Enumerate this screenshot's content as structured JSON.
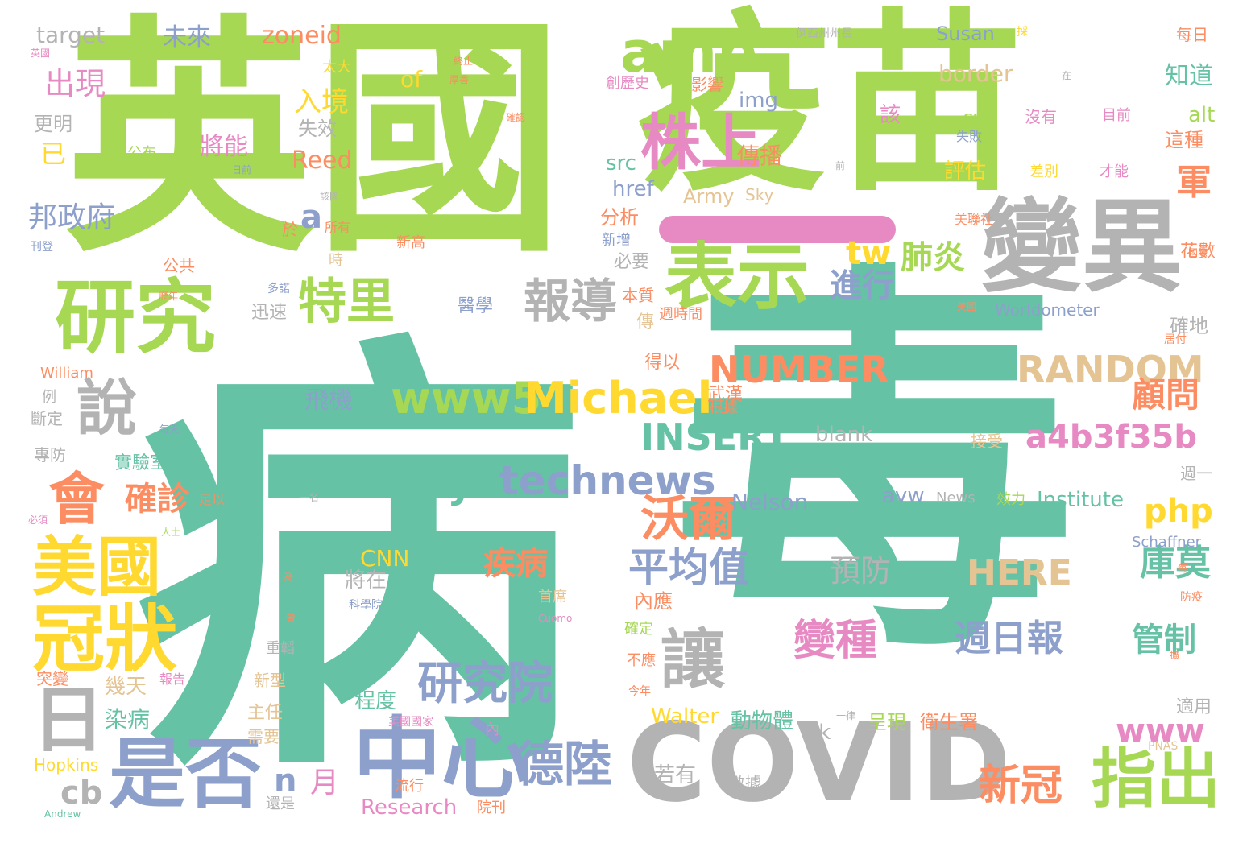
{
  "title": "",
  "palette": {
    "green": "#a6d854",
    "teal": "#66c2a5",
    "gray": "#b3b3b3",
    "blue": "#8da0cb",
    "yellow": "#ffd92f",
    "orange": "#fc8d62",
    "pink": "#e78ac3",
    "tan": "#e5c494"
  },
  "words": [
    {
      "text": "病",
      "color": "#66c2a5"
    },
    {
      "text": "毒",
      "color": "#66c2a5"
    },
    {
      "text": "英國",
      "color": "#a6d854"
    },
    {
      "text": "疫苗",
      "color": "#a6d854"
    },
    {
      "text": "COVID",
      "color": "#b3b3b3"
    },
    {
      "text": "變異",
      "color": "#b3b3b3"
    },
    {
      "text": "表示",
      "color": "#a6d854"
    },
    {
      "text": "研究",
      "color": "#a6d854"
    },
    {
      "text": "中心",
      "color": "#8da0cb"
    },
    {
      "text": "是否",
      "color": "#8da0cb"
    },
    {
      "text": "冠狀",
      "color": "#ffd92f"
    },
    {
      "text": "美國",
      "color": "#ffd92f"
    },
    {
      "text": "日",
      "color": "#b3b3b3"
    },
    {
      "text": "會",
      "color": "#fc8d62"
    },
    {
      "text": "說",
      "color": "#b3b3b3"
    },
    {
      "text": "amp",
      "color": "#a6d854"
    },
    {
      "text": "株上",
      "color": "#e78ac3"
    },
    {
      "text": "讓",
      "color": "#b3b3b3"
    },
    {
      "text": "指出",
      "color": "#a6d854"
    },
    {
      "text": "特里",
      "color": "#a6d854"
    },
    {
      "text": "報導",
      "color": "#b3b3b3"
    },
    {
      "text": "www5",
      "color": "#a6d854"
    },
    {
      "text": "Michael",
      "color": "#ffd92f"
    },
    {
      "text": "technews",
      "color": "#8da0cb"
    },
    {
      "text": "delivery",
      "color": "#66c2a5"
    },
    {
      "text": "沃爾",
      "color": "#fc8d62"
    },
    {
      "text": "研究院",
      "color": "#8da0cb"
    },
    {
      "text": "德陸",
      "color": "#8da0cb"
    },
    {
      "text": "平均值",
      "color": "#8da0cb"
    },
    {
      "text": "NUMBER",
      "color": "#fc8d62"
    },
    {
      "text": "RANDOM",
      "color": "#e5c494"
    },
    {
      "text": "INSERT",
      "color": "#66c2a5"
    },
    {
      "text": "a4b3f35b",
      "color": "#e78ac3"
    },
    {
      "text": "php",
      "color": "#ffd92f"
    },
    {
      "text": "HERE",
      "color": "#e5c494"
    },
    {
      "text": "變種",
      "color": "#e78ac3"
    },
    {
      "text": "週日報",
      "color": "#8da0cb"
    },
    {
      "text": "新冠",
      "color": "#fc8d62"
    },
    {
      "text": "www",
      "color": "#e78ac3"
    },
    {
      "text": "庫莫",
      "color": "#66c2a5"
    },
    {
      "text": "管制",
      "color": "#66c2a5"
    },
    {
      "text": "顧問",
      "color": "#fc8d62"
    },
    {
      "text": "軍",
      "color": "#fc8d62"
    },
    {
      "text": "肺炎",
      "color": "#a6d854"
    },
    {
      "text": "進行",
      "color": "#8da0cb"
    },
    {
      "text": "tw",
      "color": "#ffd92f"
    },
    {
      "text": "疾病",
      "color": "#fc8d62"
    },
    {
      "text": "預防",
      "color": "#b3b3b3"
    },
    {
      "text": "確診",
      "color": "#fc8d62"
    },
    {
      "text": "邦政府",
      "color": "#8da0cb"
    },
    {
      "text": "出現",
      "color": "#e78ac3"
    },
    {
      "text": "入境",
      "color": "#ffd92f"
    },
    {
      "text": "cb",
      "color": "#b3b3b3"
    },
    {
      "text": "n",
      "color": "#8da0cb"
    },
    {
      "text": "月",
      "color": "#e78ac3"
    },
    {
      "text": "a",
      "color": "#8da0cb"
    },
    {
      "text": "target",
      "color": "#b3b3b3"
    },
    {
      "text": "未來",
      "color": "#8da0cb"
    },
    {
      "text": "zoneid",
      "color": "#fc8d62"
    },
    {
      "text": "of",
      "color": "#ffd92f"
    },
    {
      "text": "已",
      "color": "#ffd92f"
    },
    {
      "text": "Reed",
      "color": "#fc8d62"
    },
    {
      "text": "將能",
      "color": "#e78ac3"
    },
    {
      "text": "失效",
      "color": "#b3b3b3"
    },
    {
      "text": "更明",
      "color": "#b3b3b3"
    },
    {
      "text": "img",
      "color": "#8da0cb"
    },
    {
      "text": "src",
      "color": "#66c2a5"
    },
    {
      "text": "href",
      "color": "#8da0cb"
    },
    {
      "text": "Army",
      "color": "#e5c494"
    },
    {
      "text": "Sky",
      "color": "#e5c494"
    },
    {
      "text": "border",
      "color": "#e5c494"
    },
    {
      "text": "傳播",
      "color": "#fc8d62"
    },
    {
      "text": "評估",
      "color": "#ffd92f"
    },
    {
      "text": "該",
      "color": "#e78ac3"
    },
    {
      "text": "分析",
      "color": "#fc8d62"
    },
    {
      "text": "必要",
      "color": "#b3b3b3"
    },
    {
      "text": "Susan",
      "color": "#8da0cb"
    },
    {
      "text": "知道",
      "color": "#66c2a5"
    },
    {
      "text": "alt",
      "color": "#a6d854"
    },
    {
      "text": "這種",
      "color": "#fc8d62"
    },
    {
      "text": "Worldometer",
      "color": "#8da0cb"
    },
    {
      "text": "確地",
      "color": "#b3b3b3"
    },
    {
      "text": "CNN",
      "color": "#ffd92f"
    },
    {
      "text": "將在",
      "color": "#b3b3b3"
    },
    {
      "text": "內應",
      "color": "#fc8d62"
    },
    {
      "text": "電腦",
      "color": "#66c2a5"
    },
    {
      "text": "程度",
      "color": "#66c2a5"
    },
    {
      "text": "幾天",
      "color": "#e5c494"
    },
    {
      "text": "染病",
      "color": "#66c2a5"
    },
    {
      "text": "Walter",
      "color": "#ffd92f"
    },
    {
      "text": "動物體",
      "color": "#66c2a5"
    },
    {
      "text": "呈現",
      "color": "#a6d854"
    },
    {
      "text": "衛生署",
      "color": "#fc8d62"
    },
    {
      "text": "ck",
      "color": "#b3b3b3"
    },
    {
      "text": "若有",
      "color": "#b3b3b3"
    },
    {
      "text": "Research",
      "color": "#e78ac3"
    },
    {
      "text": "Hopkins",
      "color": "#ffd92f"
    },
    {
      "text": "blank",
      "color": "#b3b3b3"
    },
    {
      "text": "Nelson",
      "color": "#8da0cb"
    },
    {
      "text": "avw",
      "color": "#8da0cb"
    },
    {
      "text": "News",
      "color": "#b3b3b3"
    },
    {
      "text": "Institute",
      "color": "#66c2a5"
    },
    {
      "text": "Schaffner",
      "color": "#8da0cb"
    },
    {
      "text": "飛機",
      "color": "#8da0cb"
    },
    {
      "text": "迅速",
      "color": "#b3b3b3"
    },
    {
      "text": "William",
      "color": "#fc8d62"
    },
    {
      "text": "得以",
      "color": "#fc8d62"
    },
    {
      "text": "武漢",
      "color": "#fc8d62"
    },
    {
      "text": "公共",
      "color": "#fc8d62"
    },
    {
      "text": "於",
      "color": "#fc8d62"
    },
    {
      "text": "時",
      "color": "#e5c494"
    },
    {
      "text": "傳",
      "color": "#e5c494"
    },
    {
      "text": "主任",
      "color": "#e5c494"
    },
    {
      "text": "需要",
      "color": "#e5c494"
    },
    {
      "text": "實驗室",
      "color": "#66c2a5"
    },
    {
      "text": "新型",
      "color": "#e5c494"
    },
    {
      "text": "突變",
      "color": "#fc8d62"
    },
    {
      "text": "斷定",
      "color": "#b3b3b3"
    },
    {
      "text": "專防",
      "color": "#b3b3b3"
    },
    {
      "text": "接受",
      "color": "#e5c494"
    },
    {
      "text": "鄞報",
      "color": "#66c2a5"
    },
    {
      "text": "效力",
      "color": "#a6d854"
    },
    {
      "text": "適用",
      "color": "#b3b3b3"
    },
    {
      "text": "週一",
      "color": "#b3b3b3"
    },
    {
      "text": "花數",
      "color": "#fc8d62"
    },
    {
      "text": "每日",
      "color": "#fc8d62"
    },
    {
      "text": "沒有",
      "color": "#e78ac3"
    },
    {
      "text": "目前",
      "color": "#e78ac3"
    },
    {
      "text": "差別",
      "color": "#ffd92f"
    },
    {
      "text": "才能",
      "color": "#e78ac3"
    },
    {
      "text": "失敗",
      "color": "#8da0cb"
    },
    {
      "text": "CDC",
      "color": "#a6d854"
    },
    {
      "text": "影響",
      "color": "#fc8d62"
    },
    {
      "text": "創歷史",
      "color": "#e78ac3"
    },
    {
      "text": "太大",
      "color": "#ffd92f"
    },
    {
      "text": "公布",
      "color": "#a6d854"
    },
    {
      "text": "新高",
      "color": "#fc8d62"
    },
    {
      "text": "新增",
      "color": "#8da0cb"
    },
    {
      "text": "本質",
      "color": "#fc8d62"
    },
    {
      "text": "醫學",
      "color": "#8da0cb"
    },
    {
      "text": "週時間",
      "color": "#fc8d62"
    },
    {
      "text": "根據",
      "color": "#fc8d62"
    },
    {
      "text": "首席",
      "color": "#e5c494"
    },
    {
      "text": "確定",
      "color": "#a6d854"
    },
    {
      "text": "不應",
      "color": "#fc8d62"
    },
    {
      "text": "今年",
      "color": "#fc8d62"
    },
    {
      "text": "一律",
      "color": "#b3b3b3"
    },
    {
      "text": "數據",
      "color": "#b3b3b3"
    },
    {
      "text": "流行",
      "color": "#fc8d62"
    },
    {
      "text": "還是",
      "color": "#b3b3b3"
    },
    {
      "text": "院刊",
      "color": "#fc8d62"
    },
    {
      "text": "美聯社",
      "color": "#fc8d62"
    },
    {
      "text": "報告",
      "color": "#e78ac3"
    },
    {
      "text": "內",
      "color": "#e78ac3"
    },
    {
      "text": "科學院",
      "color": "#8da0cb"
    },
    {
      "text": "重韜",
      "color": "#b3b3b3"
    },
    {
      "text": "例",
      "color": "#b3b3b3"
    },
    {
      "text": "所有",
      "color": "#fc8d62"
    },
    {
      "text": "刊登",
      "color": "#8da0cb"
    },
    {
      "text": "足以",
      "color": "#fc8d62"
    },
    {
      "text": "人士",
      "color": "#a6d854"
    },
    {
      "text": "PNAS",
      "color": "#e5c494"
    },
    {
      "text": "Andrew",
      "color": "#66c2a5"
    },
    {
      "text": "Cuomo",
      "color": "#e78ac3"
    },
    {
      "text": "美國國家",
      "color": "#e78ac3"
    },
    {
      "text": "防疫",
      "color": "#fc8d62"
    },
    {
      "text": "國際",
      "color": "#fc8d62"
    },
    {
      "text": "居付",
      "color": "#fc8d62"
    },
    {
      "text": "每天",
      "color": "#8da0cb"
    },
    {
      "text": "日前",
      "color": "#8da0cb"
    },
    {
      "text": "必須",
      "color": "#e78ac3"
    },
    {
      "text": "多諾",
      "color": "#8da0cb"
    },
    {
      "text": "為",
      "color": "#fc8d62"
    },
    {
      "text": "一名",
      "color": "#b3b3b3"
    },
    {
      "text": "歷年",
      "color": "#fc8d62"
    },
    {
      "text": "美國",
      "color": "#fc8d62"
    },
    {
      "text": "曾",
      "color": "#fc8d62"
    },
    {
      "text": "終止",
      "color": "#fc8d62"
    },
    {
      "text": "厚香",
      "color": "#fc8d62"
    },
    {
      "text": "確認",
      "color": "#fc8d62"
    },
    {
      "text": "擴",
      "color": "#fc8d62"
    },
    {
      "text": "每",
      "color": "#fc8d62"
    },
    {
      "text": "採",
      "color": "#ffd92f"
    },
    {
      "text": "英國",
      "color": "#e78ac3"
    },
    {
      "text": "該國",
      "color": "#b3b3b3"
    },
    {
      "text": "倒西州州長",
      "color": "#b3b3b3"
    },
    {
      "text": "前",
      "color": "#b3b3b3"
    },
    {
      "text": "在",
      "color": "#b3b3b3"
    }
  ]
}
